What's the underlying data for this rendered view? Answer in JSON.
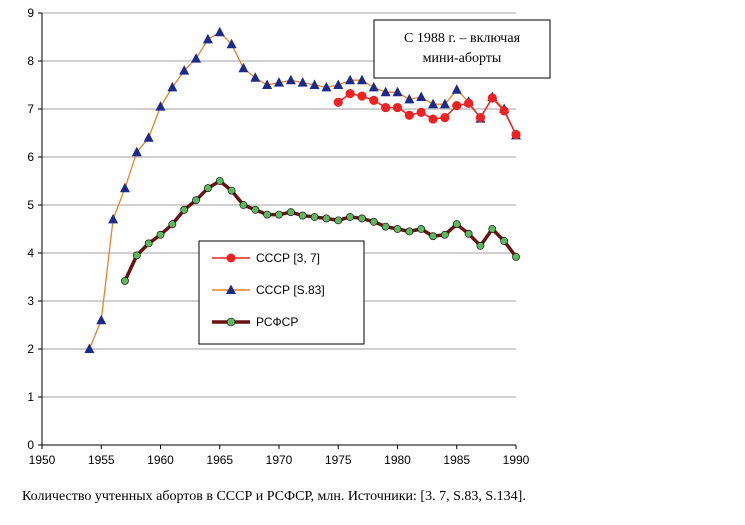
{
  "caption": "Количество учтенных абортов в СССР и РСФСР, млн. Источники: [3. 7, S.83, S.134].",
  "chart_data": {
    "type": "line",
    "title": "",
    "xlabel": "",
    "ylabel": "",
    "xlim": [
      1950,
      1990
    ],
    "ylim": [
      0,
      9
    ],
    "xticks": [
      "1950",
      "1955",
      "1960",
      "1965",
      "1970",
      "1975",
      "1980",
      "1985",
      "1990"
    ],
    "yticks": [
      "0",
      "1",
      "2",
      "3",
      "4",
      "5",
      "6",
      "7",
      "8",
      "9"
    ],
    "grid": "horizontal",
    "legend_position": "center-left",
    "annotation": [
      "С 1988 г. – включая",
      "мини-аборты"
    ],
    "series": [
      {
        "name": "СССР [3, 7]",
        "color": "#ee2222",
        "marker": "circle",
        "x": [
          1975,
          1976,
          1977,
          1978,
          1979,
          1980,
          1981,
          1982,
          1983,
          1984,
          1985,
          1986,
          1987,
          1988,
          1989,
          1990
        ],
        "y": [
          7.14,
          7.32,
          7.27,
          7.18,
          7.03,
          7.03,
          6.87,
          6.93,
          6.79,
          6.82,
          7.07,
          7.12,
          6.82,
          7.23,
          6.96,
          6.47
        ]
      },
      {
        "name": "СССР [S.83]",
        "color": "#e8822a",
        "marker": "triangle",
        "marker_color": "#1c2a8c",
        "x": [
          1954,
          1955,
          1956,
          1957,
          1958,
          1959,
          1960,
          1961,
          1962,
          1963,
          1964,
          1965,
          1966,
          1967,
          1968,
          1969,
          1970,
          1971,
          1972,
          1973,
          1974,
          1975,
          1976,
          1977,
          1978,
          1979,
          1980,
          1981,
          1982,
          1983,
          1984,
          1985,
          1986,
          1987,
          1988,
          1989,
          1990
        ],
        "y": [
          2.0,
          2.6,
          4.7,
          5.35,
          6.1,
          6.4,
          7.05,
          7.45,
          7.8,
          8.05,
          8.45,
          8.6,
          8.35,
          7.85,
          7.65,
          7.5,
          7.55,
          7.6,
          7.55,
          7.5,
          7.45,
          7.5,
          7.6,
          7.6,
          7.45,
          7.35,
          7.35,
          7.2,
          7.25,
          7.1,
          7.1,
          7.4,
          7.15,
          6.8,
          7.25,
          7.0,
          6.45
        ]
      },
      {
        "name": "РСФСР",
        "color": "#6b1212",
        "marker": "circle",
        "marker_color": "#5cb85c",
        "x": [
          1957,
          1958,
          1959,
          1960,
          1961,
          1962,
          1963,
          1964,
          1965,
          1966,
          1967,
          1968,
          1969,
          1970,
          1971,
          1972,
          1973,
          1974,
          1975,
          1976,
          1977,
          1978,
          1979,
          1980,
          1981,
          1982,
          1983,
          1984,
          1985,
          1986,
          1987,
          1988,
          1989,
          1990
        ],
        "y": [
          3.42,
          3.95,
          4.2,
          4.38,
          4.6,
          4.9,
          5.1,
          5.35,
          5.5,
          5.3,
          5.0,
          4.9,
          4.8,
          4.8,
          4.85,
          4.78,
          4.75,
          4.72,
          4.68,
          4.75,
          4.72,
          4.65,
          4.55,
          4.5,
          4.45,
          4.5,
          4.35,
          4.38,
          4.6,
          4.4,
          4.15,
          4.5,
          4.25,
          3.92
        ]
      }
    ]
  }
}
